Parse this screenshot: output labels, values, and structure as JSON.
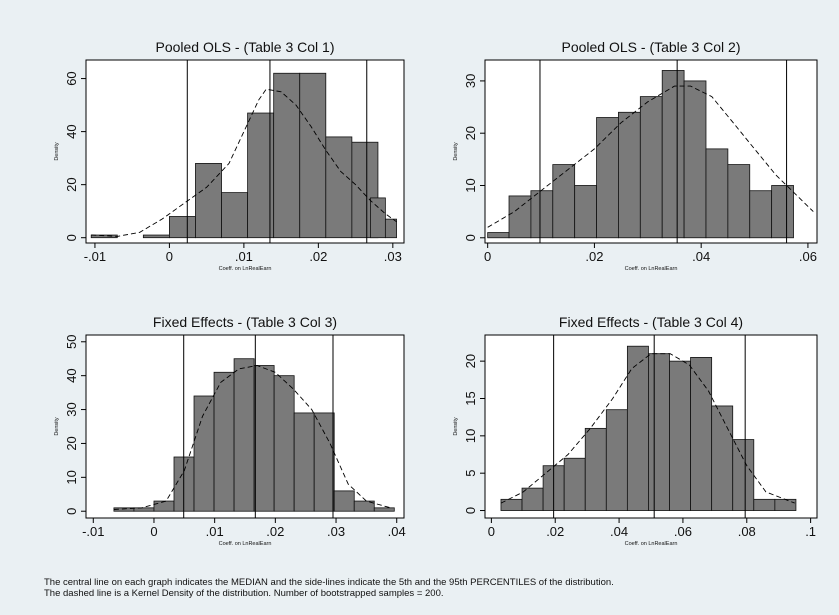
{
  "chart_data": [
    {
      "type": "bar",
      "title": "Pooled OLS - (Table 3 Col 1)",
      "xlabel": "Coeff. on LnRealEarn",
      "ylabel": "Density",
      "xlim": [
        -0.0112,
        0.0315
      ],
      "ylim": [
        -2,
        67
      ],
      "xticks": [
        -0.01,
        0,
        0.01,
        0.02,
        0.03
      ],
      "xtick_labels": [
        "-.01",
        "0",
        ".01",
        ".02",
        ".03"
      ],
      "yticks": [
        0,
        20,
        40,
        60
      ],
      "ytick_labels": [
        "0",
        "20",
        "40",
        "60"
      ],
      "bins": [
        {
          "x0": -0.0105,
          "x1": -0.007,
          "value": 1
        },
        {
          "x0": -0.0035,
          "x1": 0.0,
          "value": 1
        },
        {
          "x0": 0.0,
          "x1": 0.0035,
          "value": 8
        },
        {
          "x0": 0.0035,
          "x1": 0.007,
          "value": 28
        },
        {
          "x0": 0.007,
          "x1": 0.0105,
          "value": 17
        },
        {
          "x0": 0.0105,
          "x1": 0.014,
          "value": 47
        },
        {
          "x0": 0.014,
          "x1": 0.0175,
          "value": 62
        },
        {
          "x0": 0.0175,
          "x1": 0.021,
          "value": 62
        },
        {
          "x0": 0.021,
          "x1": 0.0245,
          "value": 38
        },
        {
          "x0": 0.0245,
          "x1": 0.028,
          "value": 36
        },
        {
          "x0": 0.028,
          "x1": 0.0315,
          "value": 21
        }
      ],
      "bins_tail": [
        {
          "x0": 0.027,
          "x1": 0.029,
          "value": 15
        },
        {
          "x0": 0.029,
          "x1": 0.0305,
          "value": 7
        }
      ],
      "kde": {
        "x": [
          -0.0105,
          -0.007,
          -0.004,
          -0.001,
          0.002,
          0.005,
          0.008,
          0.01,
          0.012,
          0.013,
          0.015,
          0.017,
          0.019,
          0.021,
          0.023,
          0.025,
          0.027,
          0.029,
          0.0305
        ],
        "y": [
          1,
          0.5,
          2,
          7,
          13,
          19,
          28,
          40,
          52,
          56,
          55,
          50,
          42,
          33,
          25,
          20,
          14,
          9,
          6
        ]
      },
      "lines": {
        "p5": 0.0024,
        "median": 0.0135,
        "p95": 0.0265
      }
    },
    {
      "type": "bar",
      "title": "Pooled OLS - (Table 3 Col 2)",
      "xlabel": "Coeff. on LnRealEarn",
      "ylabel": "Density",
      "xlim": [
        -0.0005,
        0.0617
      ],
      "ylim": [
        -1,
        34
      ],
      "xticks": [
        0,
        0.02,
        0.04,
        0.06
      ],
      "xtick_labels": [
        "0",
        ".02",
        ".04",
        ".06"
      ],
      "yticks": [
        0,
        10,
        20,
        30
      ],
      "ytick_labels": [
        "0",
        "10",
        "20",
        "30"
      ],
      "bins": [
        {
          "x0": 0.0,
          "x1": 0.004,
          "value": 1
        },
        {
          "x0": 0.004,
          "x1": 0.0081,
          "value": 8
        },
        {
          "x0": 0.0081,
          "x1": 0.0122,
          "value": 9
        },
        {
          "x0": 0.0122,
          "x1": 0.0163,
          "value": 14
        },
        {
          "x0": 0.0163,
          "x1": 0.0204,
          "value": 10
        },
        {
          "x0": 0.0204,
          "x1": 0.0245,
          "value": 23
        },
        {
          "x0": 0.0245,
          "x1": 0.0286,
          "value": 24
        },
        {
          "x0": 0.0286,
          "x1": 0.0327,
          "value": 27
        },
        {
          "x0": 0.0327,
          "x1": 0.0368,
          "value": 32
        },
        {
          "x0": 0.0368,
          "x1": 0.0409,
          "value": 30
        },
        {
          "x0": 0.0409,
          "x1": 0.045,
          "value": 17
        },
        {
          "x0": 0.045,
          "x1": 0.0491,
          "value": 14
        },
        {
          "x0": 0.0491,
          "x1": 0.0532,
          "value": 9
        },
        {
          "x0": 0.0532,
          "x1": 0.0573,
          "value": 10
        }
      ],
      "kde": {
        "x": [
          0,
          0.005,
          0.01,
          0.015,
          0.02,
          0.025,
          0.03,
          0.035,
          0.038,
          0.042,
          0.046,
          0.05,
          0.054,
          0.058,
          0.061
        ],
        "y": [
          2,
          5,
          9,
          13,
          17,
          22,
          26,
          29,
          29,
          27,
          22,
          17,
          12,
          8,
          5
        ]
      },
      "lines": {
        "p5": 0.0098,
        "median": 0.0355,
        "p95": 0.056
      }
    },
    {
      "type": "bar",
      "title": "Fixed Effects - (Table 3 Col 3)",
      "xlabel": "Coeff. on LnRealEarn",
      "ylabel": "Density",
      "xlim": [
        -0.0112,
        0.0412
      ],
      "ylim": [
        -2,
        52
      ],
      "xticks": [
        -0.01,
        0,
        0.01,
        0.02,
        0.03,
        0.04
      ],
      "xtick_labels": [
        "-.01",
        "0",
        ".01",
        ".02",
        ".03",
        ".04"
      ],
      "yticks": [
        0,
        10,
        20,
        30,
        40,
        50
      ],
      "ytick_labels": [
        "0",
        "10",
        "20",
        "30",
        "40",
        "50"
      ],
      "bins": [
        {
          "x0": -0.0066,
          "x1": -0.0033,
          "value": 1
        },
        {
          "x0": -0.0033,
          "x1": 0.0,
          "value": 1
        },
        {
          "x0": 0.0,
          "x1": 0.0033,
          "value": 3
        },
        {
          "x0": 0.0033,
          "x1": 0.0066,
          "value": 16
        },
        {
          "x0": 0.0066,
          "x1": 0.0099,
          "value": 34
        },
        {
          "x0": 0.0099,
          "x1": 0.0132,
          "value": 41
        },
        {
          "x0": 0.0132,
          "x1": 0.0165,
          "value": 45
        },
        {
          "x0": 0.0165,
          "x1": 0.0198,
          "value": 43
        },
        {
          "x0": 0.0198,
          "x1": 0.0231,
          "value": 40
        },
        {
          "x0": 0.0231,
          "x1": 0.0264,
          "value": 29
        },
        {
          "x0": 0.0264,
          "x1": 0.0297,
          "value": 29
        },
        {
          "x0": 0.0297,
          "x1": 0.033,
          "value": 6
        },
        {
          "x0": 0.033,
          "x1": 0.0363,
          "value": 3
        },
        {
          "x0": 0.0363,
          "x1": 0.0396,
          "value": 1
        }
      ],
      "kde": {
        "x": [
          -0.0066,
          -0.002,
          0.002,
          0.005,
          0.008,
          0.011,
          0.014,
          0.017,
          0.02,
          0.023,
          0.026,
          0.029,
          0.032,
          0.035,
          0.039
        ],
        "y": [
          0.5,
          1,
          3,
          12,
          28,
          38,
          42,
          43,
          41,
          36,
          30,
          20,
          8,
          3,
          1
        ]
      },
      "lines": {
        "p5": 0.0049,
        "median": 0.0167,
        "p95": 0.0295
      }
    },
    {
      "type": "bar",
      "title": "Fixed Effects - (Table 3 Col 4)",
      "xlabel": "Coeff. on LnRealEarn",
      "ylabel": "Density",
      "xlim": [
        -0.002,
        0.102
      ],
      "ylim": [
        -1,
        23.5
      ],
      "xticks": [
        0,
        0.02,
        0.04,
        0.06,
        0.08,
        0.1
      ],
      "xtick_labels": [
        "0",
        ".02",
        ".04",
        ".06",
        ".08",
        ".1"
      ],
      "yticks": [
        0,
        5,
        10,
        15,
        20
      ],
      "ytick_labels": [
        "0",
        "5",
        "10",
        "15",
        "20"
      ],
      "bins": [
        {
          "x0": 0.003,
          "x1": 0.0096,
          "value": 1.5
        },
        {
          "x0": 0.0096,
          "x1": 0.0162,
          "value": 3
        },
        {
          "x0": 0.0162,
          "x1": 0.0228,
          "value": 6
        },
        {
          "x0": 0.0228,
          "x1": 0.0294,
          "value": 7
        },
        {
          "x0": 0.0294,
          "x1": 0.036,
          "value": 11
        },
        {
          "x0": 0.036,
          "x1": 0.0426,
          "value": 13.5
        },
        {
          "x0": 0.0426,
          "x1": 0.0492,
          "value": 22
        },
        {
          "x0": 0.0492,
          "x1": 0.0558,
          "value": 21
        },
        {
          "x0": 0.0558,
          "x1": 0.0624,
          "value": 20
        },
        {
          "x0": 0.0624,
          "x1": 0.069,
          "value": 20.5
        },
        {
          "x0": 0.069,
          "x1": 0.0756,
          "value": 14
        },
        {
          "x0": 0.0756,
          "x1": 0.0822,
          "value": 9.5
        },
        {
          "x0": 0.0822,
          "x1": 0.0888,
          "value": 1.5
        },
        {
          "x0": 0.0888,
          "x1": 0.0954,
          "value": 1.5
        }
      ],
      "kde": {
        "x": [
          0.003,
          0.01,
          0.017,
          0.024,
          0.031,
          0.038,
          0.044,
          0.05,
          0.056,
          0.062,
          0.068,
          0.074,
          0.08,
          0.086,
          0.095
        ],
        "y": [
          1,
          2.5,
          5,
          7.5,
          11,
          15,
          19,
          21,
          21,
          19.5,
          16,
          11,
          6,
          2.5,
          1
        ]
      },
      "lines": {
        "p5": 0.0195,
        "median": 0.051,
        "p95": 0.0795
      }
    }
  ],
  "caption": {
    "line1": "The central line on each graph indicates the MEDIAN and the side-lines indicate the 5th and the 95th PERCENTILES of the distribution.",
    "line2": "The dashed line is a Kernel Density of the distribution. Number of bootstrapped samples = 200."
  },
  "colors": {
    "background": "#eaf0f3",
    "plot_bg": "#ffffff",
    "bar_fill": "#7a7a7a",
    "bar_stroke": "#111111",
    "line": "#000000"
  }
}
